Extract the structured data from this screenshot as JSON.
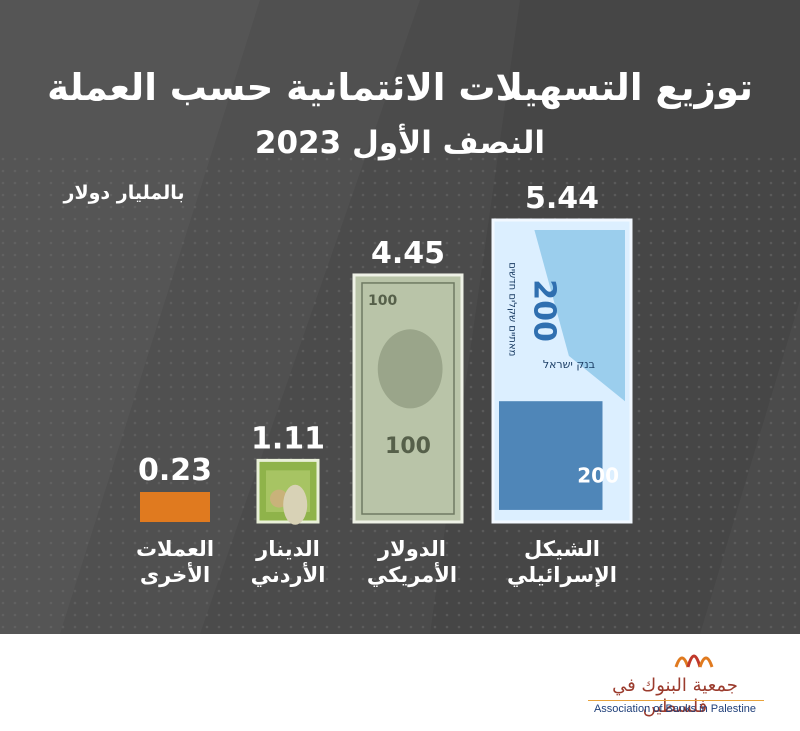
{
  "chart_data": {
    "type": "bar",
    "title": "توزيع التسهيلات الائتمانية حسب العملة",
    "subtitle": "النصف الأول 2023",
    "unit": "بالمليار دولار",
    "categories": [
      "العملات الأخرى",
      "الدينار الأردني",
      "الدولار الأمريكي",
      "الشيكل الإسرائيلي"
    ],
    "category_lines": [
      [
        "العملات",
        "الأخرى"
      ],
      [
        "الدينار",
        "الأردني"
      ],
      [
        "الدولار",
        "الأمريكي"
      ],
      [
        "الشيكل",
        "الإسرائيلي"
      ]
    ],
    "values": [
      0.23,
      1.11,
      4.45,
      5.44
    ],
    "value_labels": [
      "0.23",
      "1.11",
      "4.45",
      "5.44"
    ],
    "bar_styles": [
      "plain",
      "jod-banknote",
      "usd-banknote",
      "ils-banknote"
    ],
    "banknote_text": {
      "usd": "100",
      "ils_denomination": "200",
      "ils_bank": "בנק ישראל",
      "ils_words": "מאתיים שקלים חדשים"
    },
    "colors": {
      "background": "#4e4e4e",
      "other_bar": "#e07a1f",
      "jod_bar": "#8fb34a",
      "usd_bar": "#b9c4a8",
      "ils_bar": "#dcefff",
      "text": "#ffffff"
    },
    "ylim": [
      0,
      5.44
    ],
    "grid": false,
    "legend": "none"
  },
  "footer": {
    "org_name_ar": "جمعية البنوك في فلسطين",
    "org_name_en": "Association of Banks in Palestine",
    "logo_icon": "abp-logo-icon"
  }
}
